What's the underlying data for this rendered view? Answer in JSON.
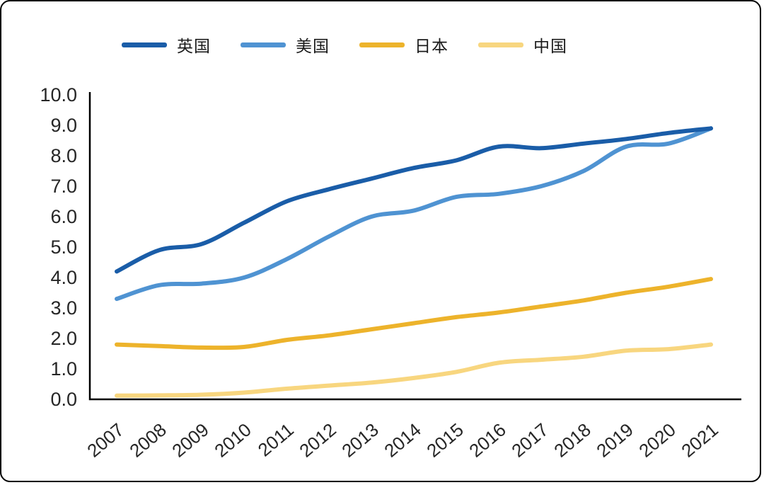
{
  "chart_data": {
    "type": "line",
    "title": "",
    "xlabel": "",
    "ylabel": "",
    "x": [
      "2007",
      "2008",
      "2009",
      "2010",
      "2011",
      "2012",
      "2013",
      "2014",
      "2015",
      "2016",
      "2017",
      "2018",
      "2019",
      "2020",
      "2021"
    ],
    "series": [
      {
        "name": "英国",
        "color": "#1a5da8",
        "values": [
          4.2,
          4.9,
          5.1,
          5.8,
          6.5,
          6.9,
          7.25,
          7.6,
          7.85,
          8.3,
          8.25,
          8.4,
          8.55,
          8.75,
          8.9
        ]
      },
      {
        "name": "美国",
        "color": "#4f93d2",
        "values": [
          3.3,
          3.75,
          3.8,
          4.0,
          4.6,
          5.35,
          6.0,
          6.2,
          6.65,
          6.75,
          7.0,
          7.5,
          8.3,
          8.4,
          8.9
        ]
      },
      {
        "name": "日本",
        "color": "#edb32b",
        "values": [
          1.8,
          1.75,
          1.7,
          1.72,
          1.95,
          2.1,
          2.3,
          2.5,
          2.7,
          2.85,
          3.05,
          3.25,
          3.5,
          3.7,
          3.95
        ]
      },
      {
        "name": "中国",
        "color": "#f8d67f",
        "values": [
          0.12,
          0.13,
          0.15,
          0.22,
          0.35,
          0.45,
          0.55,
          0.7,
          0.9,
          1.2,
          1.3,
          1.4,
          1.6,
          1.65,
          1.8
        ]
      }
    ],
    "ylim": [
      0,
      10
    ],
    "ytick_step": 1,
    "ytick_labels": [
      "0.0",
      "1.0",
      "2.0",
      "3.0",
      "4.0",
      "5.0",
      "6.0",
      "7.0",
      "8.0",
      "9.0",
      "10.0"
    ],
    "grid": false,
    "legend_position": "top",
    "axis_color": "#000000",
    "tick_label_color": "#262626"
  }
}
